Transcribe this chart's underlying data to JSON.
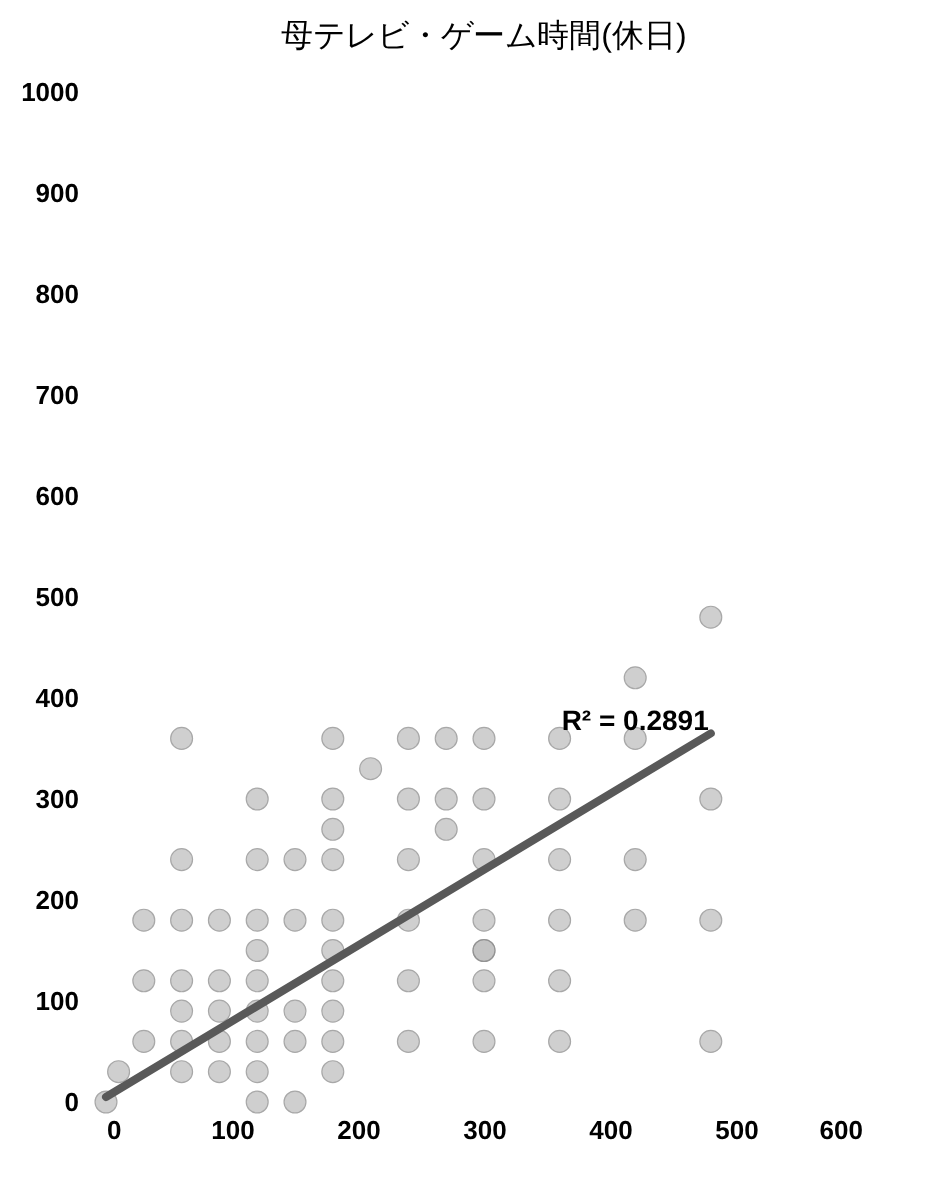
{
  "chart_data": {
    "type": "scatter",
    "title": "母テレビ・ゲーム時間(休日)",
    "xlim": [
      0,
      600
    ],
    "xticks": [
      0,
      100,
      200,
      300,
      400,
      500,
      600
    ],
    "ylim": [
      0,
      1000
    ],
    "yticks": [
      0,
      100,
      200,
      300,
      400,
      500,
      600,
      700,
      800,
      900,
      1000
    ],
    "grid": false,
    "annotations": [
      {
        "text": "R² = 0.2891",
        "x": 420,
        "y": 360
      }
    ],
    "series": [
      {
        "color": "#bfbfbf",
        "marker": "circle",
        "x": [
          60,
          180,
          240,
          270,
          300,
          210,
          120,
          180,
          240,
          270,
          300,
          180,
          270,
          60,
          120,
          150,
          180,
          240,
          300,
          30,
          60,
          90,
          120,
          150,
          180,
          240,
          300,
          120,
          180,
          300,
          30,
          60,
          90,
          120,
          180,
          240,
          300,
          60,
          90,
          120,
          150,
          180,
          30,
          60,
          90,
          120,
          150,
          180,
          240,
          300,
          10,
          60,
          90,
          120,
          180,
          0,
          120,
          150,
          480,
          420,
          360,
          420,
          360,
          480,
          360,
          420,
          360,
          420,
          480,
          300,
          360,
          360,
          480
        ],
        "values": [
          360,
          360,
          360,
          360,
          360,
          330,
          300,
          300,
          300,
          300,
          300,
          270,
          270,
          240,
          240,
          240,
          240,
          240,
          240,
          180,
          180,
          180,
          180,
          180,
          180,
          180,
          180,
          150,
          150,
          150,
          120,
          120,
          120,
          120,
          120,
          120,
          120,
          90,
          90,
          90,
          90,
          90,
          60,
          60,
          60,
          60,
          60,
          60,
          60,
          60,
          30,
          30,
          30,
          30,
          30,
          0,
          0,
          0,
          480,
          420,
          360,
          360,
          300,
          300,
          240,
          240,
          180,
          180,
          180,
          150,
          120,
          60,
          60
        ]
      },
      {
        "type": "line",
        "color": "#595959",
        "line_style": "solid",
        "marker": "none",
        "x": [
          0,
          480
        ],
        "values": [
          5,
          365
        ]
      }
    ]
  }
}
